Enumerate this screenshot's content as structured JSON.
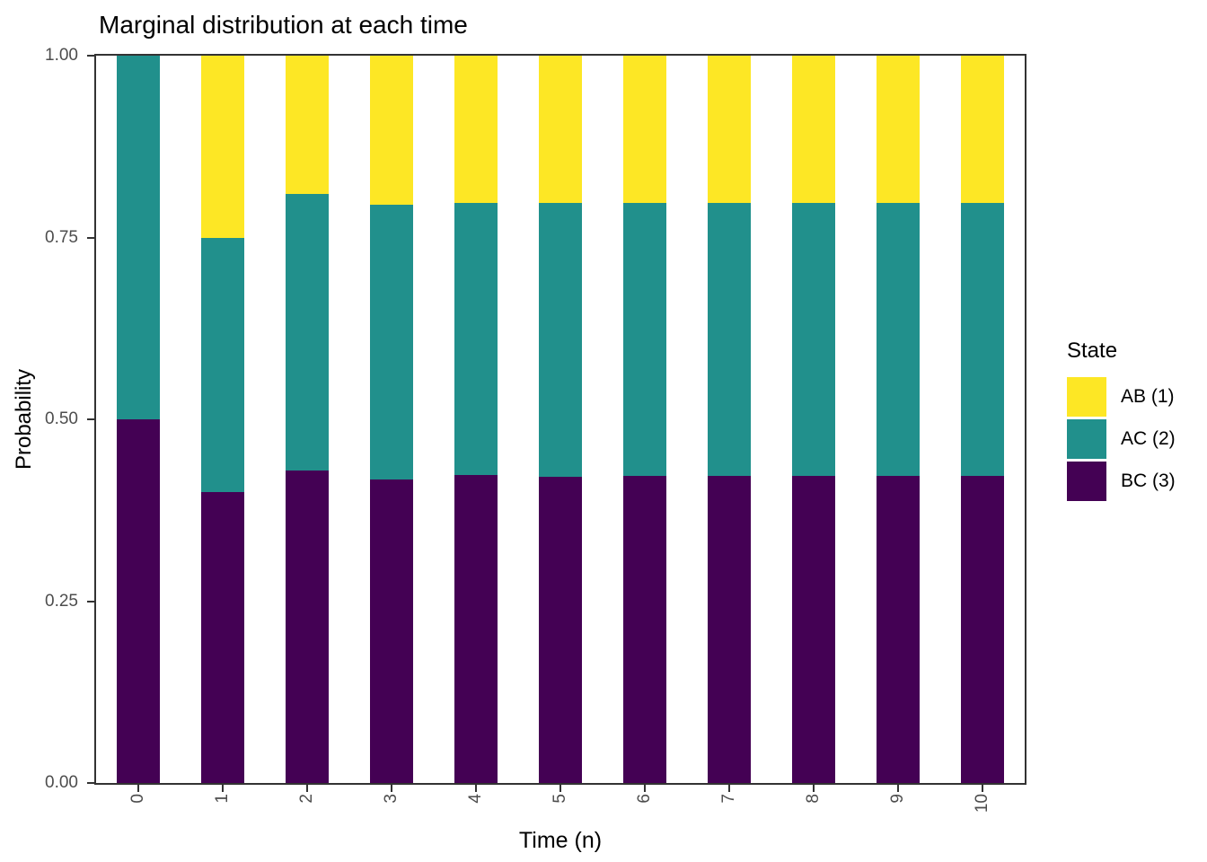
{
  "chart_data": {
    "type": "bar",
    "stacked": true,
    "title": "Marginal distribution at each time",
    "xlabel": "Time (n)",
    "ylabel": "Probability",
    "categories": [
      "0",
      "1",
      "2",
      "3",
      "4",
      "5",
      "6",
      "7",
      "8",
      "9",
      "10"
    ],
    "yticks": [
      "0.00",
      "0.25",
      "0.50",
      "0.75",
      "1.00"
    ],
    "ylim": [
      0,
      1
    ],
    "grid": false,
    "legend_title": "State",
    "legend_position": "right",
    "series": [
      {
        "name": "AB (1)",
        "color": "#FDE725",
        "values": [
          0.0,
          0.25,
          0.19,
          0.205,
          0.202,
          0.202,
          0.202,
          0.202,
          0.202,
          0.202,
          0.202
        ]
      },
      {
        "name": "AC (2)",
        "color": "#21908C",
        "values": [
          0.5,
          0.35,
          0.38,
          0.378,
          0.375,
          0.377,
          0.376,
          0.376,
          0.376,
          0.376,
          0.376
        ]
      },
      {
        "name": "BC (3)",
        "color": "#440154",
        "values": [
          0.5,
          0.4,
          0.43,
          0.417,
          0.423,
          0.421,
          0.422,
          0.422,
          0.422,
          0.422,
          0.422
        ]
      }
    ],
    "colors": {
      "axis_text": "#4d4d4d",
      "axis_line": "#333333",
      "title_text": "#000000",
      "background": "#ffffff"
    }
  }
}
